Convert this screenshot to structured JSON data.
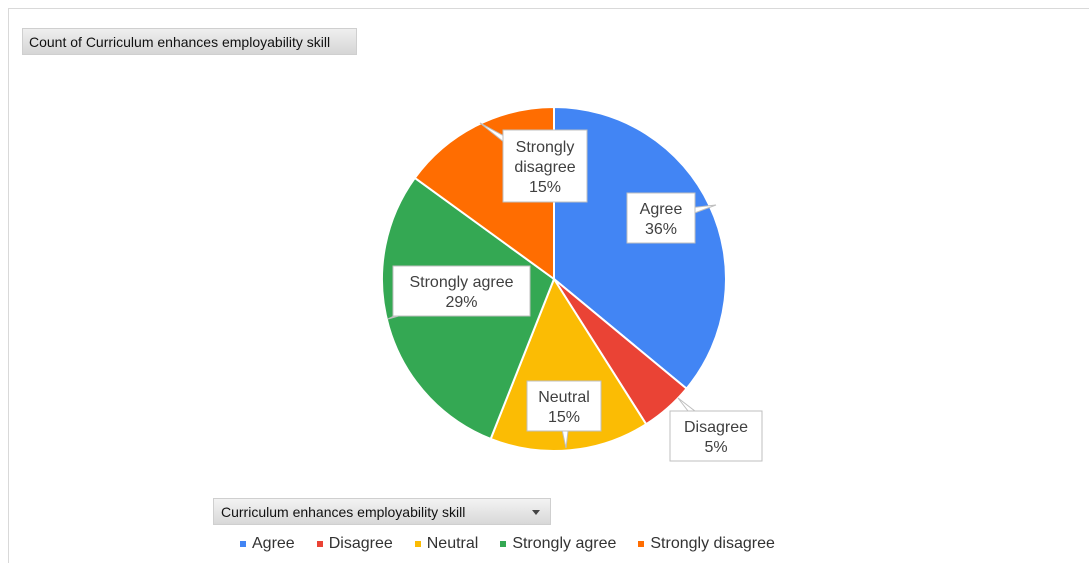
{
  "chart_title_button": "Count of Curriculum enhances  employability skill",
  "field_button": "Curriculum enhances  employability skill",
  "chart_data": {
    "type": "pie",
    "title": "Count of Curriculum enhances  employability skill",
    "legend_position": "bottom",
    "slices": [
      {
        "label": "Agree",
        "percent": 36,
        "color": "#4285F4"
      },
      {
        "label": "Disagree",
        "percent": 5,
        "color": "#EA4335"
      },
      {
        "label": "Neutral",
        "percent": 15,
        "color": "#FBBC04"
      },
      {
        "label": "Strongly agree",
        "percent": 29,
        "color": "#34A853"
      },
      {
        "label": "Strongly disagree",
        "percent": 15,
        "color": "#FF6D01"
      }
    ]
  }
}
